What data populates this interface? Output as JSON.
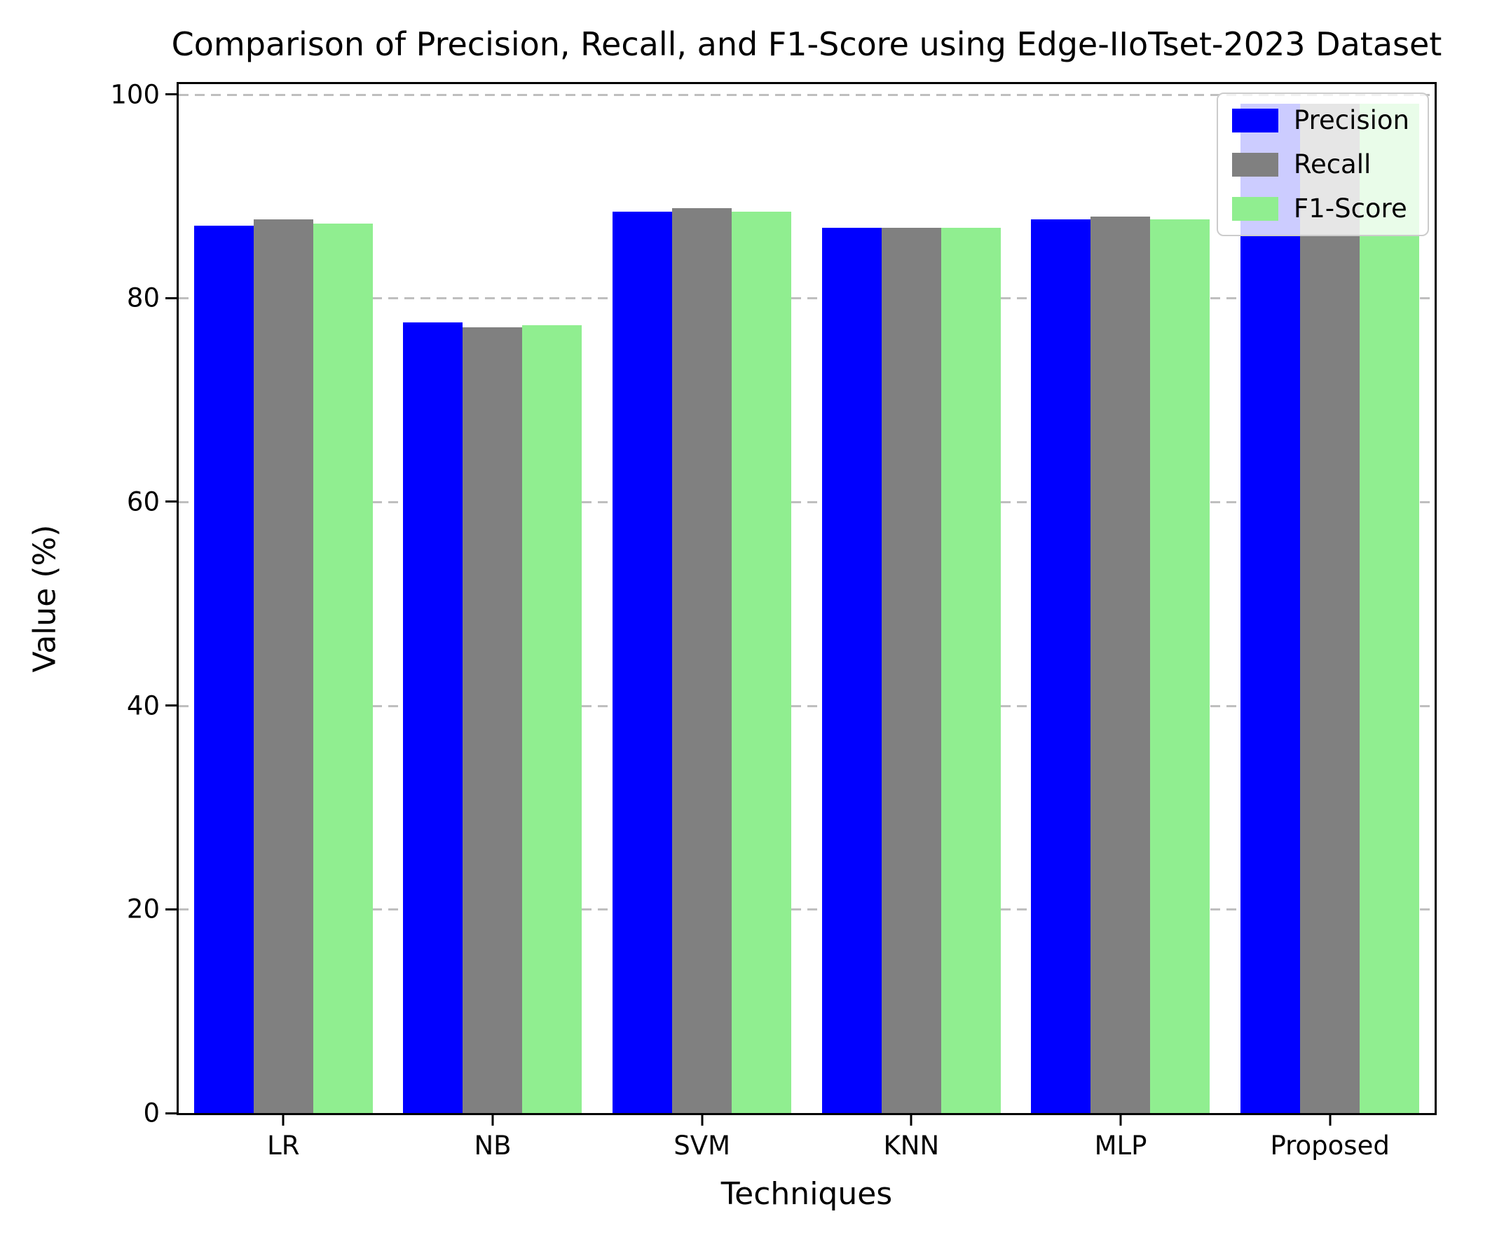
{
  "chart_data": {
    "type": "bar",
    "title": "Comparison of Precision, Recall, and F1-Score using Edge-IIoTset-2023 Dataset",
    "xlabel": "Techniques",
    "ylabel": "Value (%)",
    "categories": [
      "LR",
      "NB",
      "SVM",
      "KNN",
      "MLP",
      "Proposed"
    ],
    "series": [
      {
        "name": "Precision",
        "color": "#0000ff",
        "values": [
          87.1,
          77.6,
          88.5,
          86.9,
          87.7,
          99.1
        ]
      },
      {
        "name": "Recall",
        "color": "#808080",
        "values": [
          87.7,
          77.1,
          88.8,
          86.9,
          88.0,
          99.1
        ]
      },
      {
        "name": "F1-Score",
        "color": "#90ee90",
        "values": [
          87.3,
          77.3,
          88.5,
          86.9,
          87.7,
          99.1
        ]
      }
    ],
    "ylim": [
      0,
      101
    ],
    "yticks": [
      0,
      20,
      40,
      60,
      80,
      100
    ],
    "grid": true,
    "grid_style": "dashed",
    "grid_color": "#bfbfbf",
    "legend_position": "upper right",
    "background_color": "#ffffff",
    "spine_color": "#000000"
  }
}
